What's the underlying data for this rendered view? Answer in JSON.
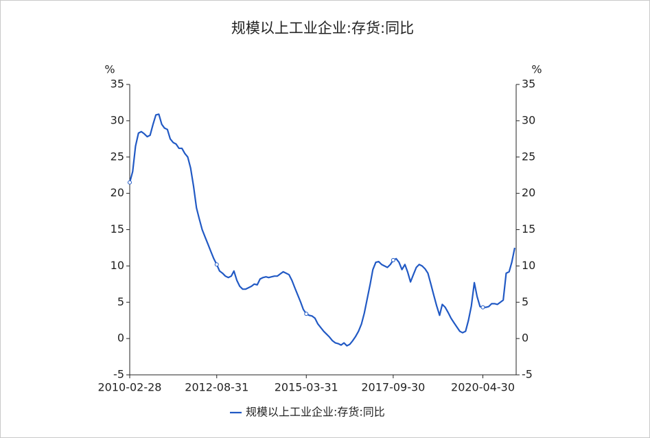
{
  "chart_data": {
    "type": "line",
    "title": "规模以上工业企业:存货:同比",
    "y_label": "%",
    "y2_label": "%",
    "x": [
      "2010-02-28",
      "2010-03-31",
      "2010-04-30",
      "2010-05-31",
      "2010-06-30",
      "2010-07-31",
      "2010-08-31",
      "2010-09-30",
      "2010-10-31",
      "2010-11-30",
      "2010-12-31",
      "2011-01-31",
      "2011-02-28",
      "2011-03-31",
      "2011-04-30",
      "2011-05-31",
      "2011-06-30",
      "2011-07-31",
      "2011-08-31",
      "2011-09-30",
      "2011-10-31",
      "2011-11-30",
      "2011-12-31",
      "2012-01-31",
      "2012-02-29",
      "2012-03-31",
      "2012-04-30",
      "2012-05-31",
      "2012-06-30",
      "2012-07-31",
      "2012-08-31",
      "2012-09-30",
      "2012-10-31",
      "2012-11-30",
      "2012-12-31",
      "2013-01-31",
      "2013-02-28",
      "2013-03-31",
      "2013-04-30",
      "2013-05-31",
      "2013-06-30",
      "2013-07-31",
      "2013-08-31",
      "2013-09-30",
      "2013-10-31",
      "2013-11-30",
      "2013-12-31",
      "2014-01-31",
      "2014-02-28",
      "2014-03-31",
      "2014-04-30",
      "2014-05-31",
      "2014-06-30",
      "2014-07-31",
      "2014-08-31",
      "2014-09-30",
      "2014-10-31",
      "2014-11-30",
      "2014-12-31",
      "2015-01-31",
      "2015-02-28",
      "2015-03-31",
      "2015-04-30",
      "2015-05-31",
      "2015-06-30",
      "2015-07-31",
      "2015-08-31",
      "2015-09-30",
      "2015-10-31",
      "2015-11-30",
      "2015-12-31",
      "2016-01-31",
      "2016-02-29",
      "2016-03-31",
      "2016-04-30",
      "2016-05-31",
      "2016-06-30",
      "2016-07-31",
      "2016-08-31",
      "2016-09-30",
      "2016-10-31",
      "2016-11-30",
      "2016-12-31",
      "2017-01-31",
      "2017-02-28",
      "2017-03-31",
      "2017-04-30",
      "2017-05-31",
      "2017-06-30",
      "2017-07-31",
      "2017-08-31",
      "2017-09-30",
      "2017-10-31",
      "2017-11-30",
      "2017-12-31",
      "2018-01-31",
      "2018-02-28",
      "2018-03-31",
      "2018-04-30",
      "2018-05-31",
      "2018-06-30",
      "2018-07-31",
      "2018-08-31",
      "2018-09-30",
      "2018-10-31",
      "2018-11-30",
      "2018-12-31",
      "2019-01-31",
      "2019-02-28",
      "2019-03-31",
      "2019-04-30",
      "2019-05-31",
      "2019-06-30",
      "2019-07-31",
      "2019-08-31",
      "2019-09-30",
      "2019-10-31",
      "2019-11-30",
      "2019-12-31",
      "2020-01-31",
      "2020-02-29",
      "2020-03-31",
      "2020-04-30",
      "2020-05-31",
      "2020-06-30",
      "2020-07-31",
      "2020-08-31",
      "2020-09-30",
      "2020-10-31",
      "2020-11-30",
      "2020-12-31",
      "2021-01-31",
      "2021-02-28",
      "2021-03-31"
    ],
    "series": [
      {
        "name": "规模以上工业企业:存货:同比",
        "color": "#2159c4",
        "values": [
          21.5,
          23,
          26.5,
          28.3,
          28.5,
          28.2,
          27.8,
          28,
          29.5,
          30.8,
          30.9,
          29.5,
          29,
          28.8,
          27.5,
          27,
          26.8,
          26.2,
          26.2,
          25.5,
          25,
          23.5,
          21,
          18,
          16.5,
          15,
          14,
          13,
          12,
          11,
          10.2,
          9.3,
          9,
          8.6,
          8.4,
          8.6,
          9.3,
          8,
          7.2,
          6.8,
          6.8,
          7,
          7.2,
          7.5,
          7.4,
          8.2,
          8.4,
          8.5,
          8.4,
          8.5,
          8.6,
          8.6,
          8.9,
          9.2,
          9,
          8.8,
          8,
          7,
          6,
          5,
          4,
          3.4,
          3.2,
          3.1,
          2.8,
          2,
          1.5,
          1,
          0.6,
          0.2,
          -0.3,
          -0.6,
          -0.7,
          -0.9,
          -0.6,
          -1,
          -0.8,
          -0.3,
          0.3,
          1,
          2,
          3.5,
          5.5,
          7.5,
          9.5,
          10.5,
          10.6,
          10.2,
          10,
          9.8,
          10.2,
          10.8,
          11,
          10.5,
          9.5,
          10.2,
          9.2,
          7.8,
          8.8,
          9.8,
          10.2,
          10,
          9.6,
          9,
          7.5,
          6,
          4.5,
          3.2,
          4.7,
          4.3,
          3.6,
          2.8,
          2.2,
          1.6,
          1,
          0.8,
          1,
          2.5,
          4.5,
          7.7,
          5.8,
          4.4,
          4.3,
          4.3,
          4.4,
          4.8,
          4.8,
          4.7,
          5,
          5.3,
          9,
          9.2,
          10.5,
          12.5
        ]
      }
    ],
    "xlim": [
      "2010-02-28",
      "2021-04-15"
    ],
    "xticks": [
      "2010-02-28",
      "2012-08-31",
      "2015-03-31",
      "2017-09-30",
      "2020-04-30"
    ],
    "ylim": [
      -5,
      35
    ],
    "yticks": [
      -5,
      0,
      5,
      10,
      15,
      20,
      25,
      30,
      35
    ],
    "y2lim": [
      -5,
      35
    ],
    "y2ticks": [
      -5,
      0,
      5,
      10,
      15,
      20,
      25,
      30,
      35
    ],
    "legend": "bottom"
  }
}
